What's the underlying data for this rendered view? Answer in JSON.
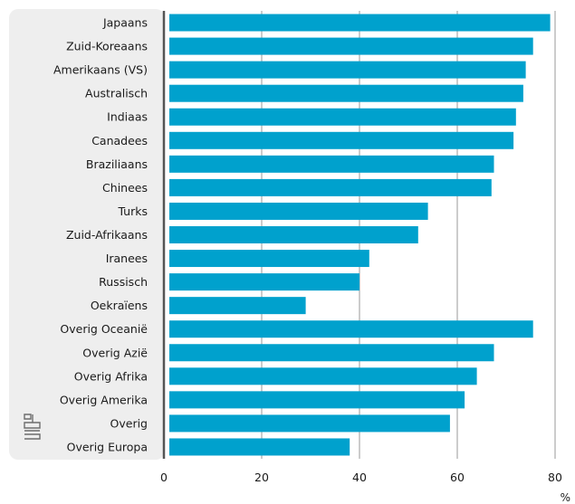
{
  "chart_data": {
    "type": "bar",
    "orientation": "horizontal",
    "categories": [
      "Japaans",
      "Zuid-Koreaans",
      "Amerikaans (VS)",
      "Australisch",
      "Indiaas",
      "Canadees",
      "Braziliaans",
      "Chinees",
      "Turks",
      "Zuid-Afrikaans",
      "Iranees",
      "Russisch",
      "Oekraïens",
      "Overig Oceanië",
      "Overig Azië",
      "Overig Afrika",
      "Overig Amerika",
      "Overig",
      "Overig Europa"
    ],
    "values": [
      79,
      75.5,
      74,
      73.5,
      72,
      71.5,
      67.5,
      67,
      54,
      52,
      42,
      40,
      29,
      75.5,
      67.5,
      64,
      61.5,
      58.5,
      38
    ],
    "xlim": [
      0,
      80
    ],
    "xticks": [
      0,
      20,
      40,
      60,
      80
    ],
    "xticklabels": [
      "0",
      "20",
      "40",
      "60",
      "80"
    ],
    "xunit": "%",
    "bar_color": "#00a1cd",
    "label_panel_color": "#eeeeee",
    "grid": true,
    "logo": "cbs-logo-icon"
  }
}
